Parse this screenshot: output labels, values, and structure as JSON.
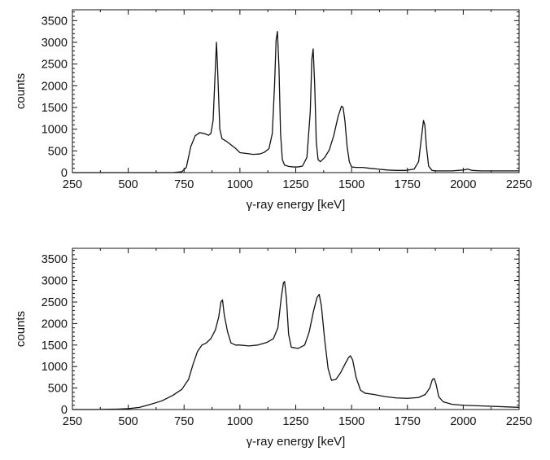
{
  "chart_data": [
    {
      "type": "line",
      "xlabel": "γ-ray energy [keV]",
      "ylabel": "counts",
      "xlim": [
        250,
        2250
      ],
      "ylim": [
        0,
        3750
      ],
      "xticks": [
        250,
        500,
        750,
        1000,
        1250,
        1500,
        1750,
        2000,
        2250
      ],
      "yticks": [
        0,
        500,
        1000,
        1500,
        2000,
        2500,
        3000,
        3500
      ],
      "grid": false,
      "series": [
        {
          "x": [
            250,
            400,
            600,
            700,
            740,
            760,
            780,
            800,
            820,
            840,
            860,
            870,
            880,
            890,
            895,
            900,
            910,
            920,
            940,
            960,
            980,
            1000,
            1030,
            1060,
            1090,
            1110,
            1130,
            1145,
            1155,
            1162,
            1168,
            1175,
            1182,
            1190,
            1200,
            1220,
            1240,
            1260,
            1280,
            1300,
            1315,
            1322,
            1328,
            1335,
            1342,
            1350,
            1360,
            1380,
            1400,
            1420,
            1440,
            1455,
            1462,
            1470,
            1480,
            1490,
            1500,
            1520,
            1550,
            1580,
            1620,
            1660,
            1700,
            1740,
            1780,
            1800,
            1815,
            1822,
            1828,
            1835,
            1845,
            1860,
            1880,
            1900,
            1950,
            2000,
            2020,
            2040,
            2080,
            2150,
            2250
          ],
          "y": [
            0,
            0,
            0,
            0,
            20,
            120,
            600,
            850,
            920,
            900,
            860,
            900,
            1200,
            2400,
            3000,
            2400,
            1000,
            780,
            720,
            640,
            560,
            460,
            440,
            420,
            430,
            470,
            550,
            900,
            2000,
            3050,
            3250,
            2400,
            900,
            300,
            170,
            140,
            130,
            130,
            150,
            350,
            1400,
            2600,
            2850,
            2000,
            700,
            300,
            250,
            350,
            520,
            850,
            1300,
            1530,
            1500,
            1200,
            600,
            250,
            130,
            120,
            120,
            100,
            80,
            60,
            50,
            50,
            80,
            250,
            900,
            1200,
            1100,
            600,
            150,
            50,
            40,
            40,
            40,
            60,
            80,
            50,
            40,
            40,
            40
          ]
        }
      ]
    },
    {
      "type": "line",
      "xlabel": "γ-ray energy [keV]",
      "ylabel": "counts",
      "xlim": [
        250,
        2250
      ],
      "ylim": [
        0,
        3750
      ],
      "xticks": [
        250,
        500,
        750,
        1000,
        1250,
        1500,
        1750,
        2000,
        2250
      ],
      "yticks": [
        0,
        500,
        1000,
        1500,
        2000,
        2500,
        3000,
        3500
      ],
      "grid": false,
      "series": [
        {
          "x": [
            250,
            350,
            450,
            500,
            550,
            600,
            650,
            700,
            740,
            770,
            790,
            810,
            830,
            850,
            870,
            890,
            905,
            915,
            922,
            930,
            945,
            960,
            980,
            1000,
            1040,
            1080,
            1120,
            1150,
            1170,
            1185,
            1195,
            1200,
            1208,
            1218,
            1230,
            1260,
            1290,
            1310,
            1330,
            1345,
            1355,
            1365,
            1380,
            1395,
            1410,
            1430,
            1450,
            1470,
            1485,
            1495,
            1505,
            1520,
            1540,
            1560,
            1600,
            1650,
            1700,
            1750,
            1800,
            1830,
            1850,
            1862,
            1870,
            1878,
            1890,
            1910,
            1950,
            2000,
            2100,
            2200,
            2250
          ],
          "y": [
            0,
            0,
            10,
            20,
            50,
            120,
            200,
            330,
            470,
            700,
            1050,
            1350,
            1500,
            1550,
            1650,
            1850,
            2150,
            2500,
            2550,
            2200,
            1800,
            1550,
            1500,
            1500,
            1480,
            1500,
            1560,
            1650,
            1900,
            2600,
            2950,
            2980,
            2600,
            1750,
            1450,
            1420,
            1500,
            1800,
            2300,
            2600,
            2680,
            2400,
            1600,
            950,
            680,
            700,
            850,
            1050,
            1200,
            1250,
            1150,
            750,
            450,
            380,
            350,
            300,
            270,
            260,
            280,
            350,
            500,
            700,
            720,
            600,
            300,
            180,
            120,
            100,
            80,
            60,
            50
          ]
        }
      ]
    }
  ]
}
